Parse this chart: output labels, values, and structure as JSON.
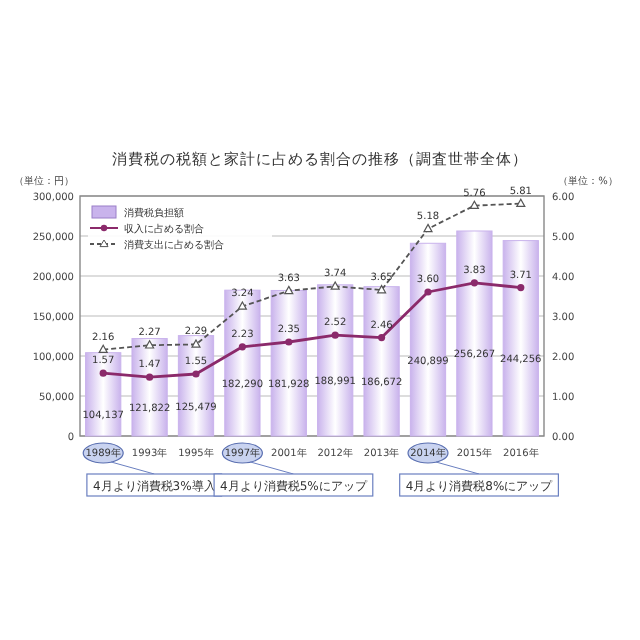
{
  "chart_data": {
    "type": "bar",
    "title": "消費税の税額と家計に占める割合の推移（調査世帯全体）",
    "ylabel": "（単位：円）",
    "y2label": "（単位：%）",
    "categories": [
      "1989年",
      "1993年",
      "1995年",
      "1997年",
      "2001年",
      "2012年",
      "2013年",
      "2014年",
      "2015年",
      "2016年"
    ],
    "series": [
      {
        "name": "消費税負担額",
        "color": "#c9b3ec",
        "values": [
          104137,
          121822,
          125479,
          182290,
          181928,
          188991,
          186672,
          240899,
          256267,
          244256
        ],
        "value_labels": [
          "104,137",
          "121,822",
          "125,479",
          "182,290",
          "181,928",
          "188,991",
          "186,672",
          "240,899",
          "256,267",
          "244,256"
        ]
      },
      {
        "name": "収入に占める割合",
        "type": "line",
        "axis": "y2",
        "color": "#8b2a6b",
        "marker": "circle",
        "line_style": "solid",
        "values": [
          1.57,
          1.47,
          1.55,
          2.23,
          2.35,
          2.52,
          2.46,
          3.6,
          3.83,
          3.71
        ],
        "value_labels": [
          "1.57",
          "1.47",
          "1.55",
          "2.23",
          "2.35",
          "2.52",
          "2.46",
          "3.60",
          "3.83",
          "3.71"
        ]
      },
      {
        "name": "消費支出に占める割合",
        "type": "line",
        "axis": "y2",
        "color": "#555555",
        "marker": "triangle",
        "line_style": "dashed",
        "values": [
          2.16,
          2.27,
          2.29,
          3.24,
          3.63,
          3.74,
          3.65,
          5.18,
          5.76,
          5.81
        ],
        "value_labels": [
          "2.16",
          "2.27",
          "2.29",
          "3.24",
          "3.63",
          "3.74",
          "3.65",
          "5.18",
          "5.76",
          "5.81"
        ]
      }
    ],
    "ylim": [
      0,
      300000
    ],
    "yticks": [
      {
        "value": 0,
        "label": "0"
      },
      {
        "value": 50000,
        "label": "50,000"
      },
      {
        "value": 100000,
        "label": "100,000"
      },
      {
        "value": 150000,
        "label": "150,000"
      },
      {
        "value": 200000,
        "label": "200,000"
      },
      {
        "value": 250000,
        "label": "250,000"
      },
      {
        "value": 300000,
        "label": "300,000"
      }
    ],
    "y2lim": [
      0,
      6
    ],
    "y2ticks": [
      {
        "value": 0,
        "label": "0.00"
      },
      {
        "value": 1,
        "label": "1.00"
      },
      {
        "value": 2,
        "label": "2.00"
      },
      {
        "value": 3,
        "label": "3.00"
      },
      {
        "value": 4,
        "label": "4.00"
      },
      {
        "value": 5,
        "label": "5.00"
      },
      {
        "value": 6,
        "label": "6.00"
      }
    ],
    "grid": "y",
    "legend": "top left",
    "annotations": [
      "4月より消費税3%導入",
      "4月より消費税5%にアップ",
      "4月より消費税8%にアップ"
    ]
  }
}
